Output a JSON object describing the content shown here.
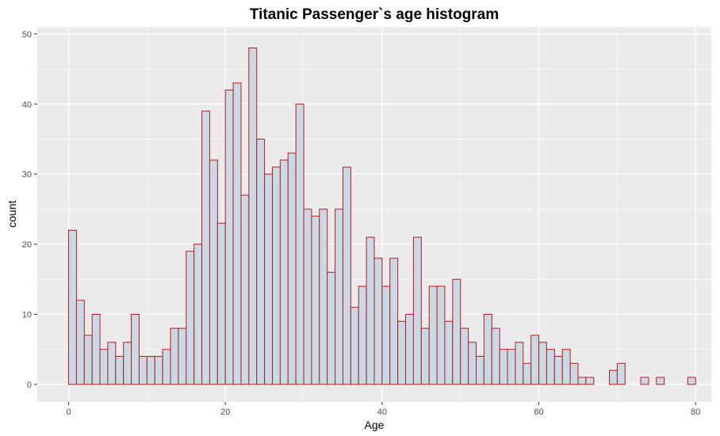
{
  "chart_data": {
    "type": "bar",
    "title": "Titanic Passenger`s age histogram",
    "xlabel": "Age",
    "ylabel": "count",
    "xlim": [
      -4,
      82
    ],
    "ylim": [
      -2.5,
      51
    ],
    "x_ticks": [
      0,
      20,
      40,
      60,
      80
    ],
    "x_tick_labels": [
      "0",
      "20",
      "40",
      "60",
      "80"
    ],
    "y_ticks": [
      0,
      10,
      20,
      30,
      40,
      50
    ],
    "y_tick_labels": [
      "0",
      "10",
      "20",
      "30",
      "40",
      "50"
    ],
    "bin_width": 1,
    "bin_start": 0,
    "values": [
      22,
      12,
      7,
      10,
      5,
      6,
      4,
      6,
      10,
      4,
      4,
      4,
      5,
      8,
      8,
      19,
      20,
      39,
      32,
      23,
      42,
      43,
      27,
      48,
      35,
      30,
      31,
      32,
      33,
      40,
      25,
      24,
      25,
      16,
      25,
      31,
      11,
      14,
      21,
      18,
      14,
      18,
      9,
      10,
      21,
      8,
      14,
      14,
      9,
      15,
      8,
      6,
      4,
      10,
      8,
      5,
      5,
      6,
      3,
      7,
      6,
      5,
      4,
      5,
      3,
      1,
      1,
      0,
      0,
      2,
      3,
      0,
      0,
      1,
      0,
      1,
      0,
      0,
      0,
      1
    ],
    "bar_fill": "#c6dbe6",
    "bar_stroke": "#cc1414",
    "panel_background": "#ebebeb",
    "grid_color": "#ffffff",
    "grid": true,
    "legend": "none"
  }
}
